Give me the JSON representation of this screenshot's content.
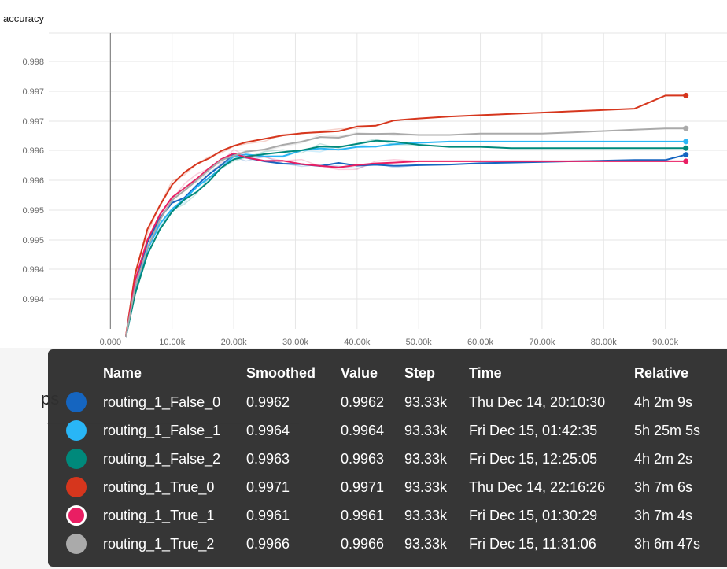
{
  "chart": {
    "title": "accuracy"
  },
  "chart_data": {
    "type": "line",
    "title": "accuracy",
    "xlabel": "",
    "ylabel": "",
    "x_ticks": [
      "0.000",
      "10.00k",
      "20.00k",
      "30.00k",
      "40.00k",
      "50.00k",
      "60.00k",
      "70.00k",
      "80.00k",
      "90.00k"
    ],
    "y_ticks": [
      "0.998",
      "0.997",
      "0.997",
      "0.996",
      "0.996",
      "0.995",
      "0.995",
      "0.994",
      "0.994"
    ],
    "xlim": [
      -10000,
      100000
    ],
    "ylim": [
      0.99355,
      0.99805
    ],
    "grid": true,
    "series": [
      {
        "name": "routing_1_False_0",
        "color": "#1565c0",
        "x": [
          2500,
          4000,
          6000,
          8000,
          10000,
          12000,
          14000,
          16000,
          18000,
          20000,
          22000,
          25000,
          28000,
          31000,
          34000,
          37000,
          40000,
          43000,
          46000,
          50000,
          55000,
          60000,
          65000,
          70000,
          75000,
          80000,
          85000,
          90000,
          93330
        ],
        "y": [
          0.99335,
          0.9942,
          0.99485,
          0.99525,
          0.99545,
          0.99555,
          0.99575,
          0.9959,
          0.99605,
          0.9962,
          0.99615,
          0.99612,
          0.99608,
          0.99606,
          0.99605,
          0.99605,
          0.99604,
          0.99604,
          0.99603,
          0.99604,
          0.99605,
          0.99607,
          0.99608,
          0.99609,
          0.9961,
          0.99611,
          0.99612,
          0.99612,
          0.9962
        ]
      },
      {
        "name": "routing_1_False_1",
        "color": "#29b6f6",
        "x": [
          2500,
          4000,
          6000,
          8000,
          10000,
          12000,
          14000,
          16000,
          18000,
          20000,
          22000,
          25000,
          28000,
          31000,
          34000,
          37000,
          40000,
          43000,
          46000,
          50000,
          55000,
          60000,
          65000,
          70000,
          75000,
          80000,
          85000,
          90000,
          93330
        ],
        "y": [
          0.9933,
          0.9941,
          0.99475,
          0.99515,
          0.9954,
          0.99552,
          0.9957,
          0.99585,
          0.996,
          0.99618,
          0.99618,
          0.99618,
          0.9962,
          0.99625,
          0.99628,
          0.9963,
          0.99632,
          0.99634,
          0.99636,
          0.99638,
          0.9964,
          0.9964,
          0.9964,
          0.9964,
          0.9964,
          0.9964,
          0.9964,
          0.9964,
          0.9964
        ]
      },
      {
        "name": "routing_1_False_2",
        "color": "#00897b",
        "x": [
          2500,
          4000,
          6000,
          8000,
          10000,
          12000,
          14000,
          16000,
          18000,
          20000,
          22000,
          25000,
          28000,
          31000,
          34000,
          37000,
          40000,
          43000,
          46000,
          50000,
          55000,
          60000,
          65000,
          70000,
          75000,
          80000,
          85000,
          90000,
          93330
        ],
        "y": [
          0.9933,
          0.9941,
          0.9947,
          0.99505,
          0.99535,
          0.9955,
          0.99565,
          0.9958,
          0.996,
          0.99615,
          0.99618,
          0.9962,
          0.99622,
          0.99628,
          0.99632,
          0.99634,
          0.99636,
          0.9964,
          0.9964,
          0.99635,
          0.99632,
          0.99632,
          0.9963,
          0.9963,
          0.9963,
          0.9963,
          0.9963,
          0.9963,
          0.9963
        ]
      },
      {
        "name": "routing_1_True_0",
        "color": "#d6361d",
        "x": [
          2500,
          4000,
          6000,
          8000,
          10000,
          12000,
          14000,
          16000,
          18000,
          20000,
          22000,
          25000,
          28000,
          31000,
          34000,
          37000,
          40000,
          43000,
          46000,
          50000,
          55000,
          60000,
          65000,
          70000,
          75000,
          80000,
          85000,
          90000,
          93330
        ],
        "y": [
          0.99345,
          0.9944,
          0.99505,
          0.99545,
          0.99575,
          0.99595,
          0.99605,
          0.99615,
          0.99625,
          0.99632,
          0.99638,
          0.99642,
          0.99648,
          0.99652,
          0.99655,
          0.99658,
          0.99662,
          0.99665,
          0.99672,
          0.99675,
          0.99678,
          0.9968,
          0.99682,
          0.99684,
          0.99686,
          0.99688,
          0.9969,
          0.9971,
          0.9971
        ]
      },
      {
        "name": "routing_1_True_1",
        "color": "#e91e63",
        "x": [
          2500,
          4000,
          6000,
          8000,
          10000,
          12000,
          14000,
          16000,
          18000,
          20000,
          22000,
          25000,
          28000,
          31000,
          34000,
          37000,
          40000,
          43000,
          46000,
          50000,
          55000,
          60000,
          65000,
          70000,
          75000,
          80000,
          85000,
          90000,
          93330
        ],
        "y": [
          0.9934,
          0.9943,
          0.9949,
          0.9953,
          0.99555,
          0.9957,
          0.99585,
          0.996,
          0.99612,
          0.99622,
          0.99618,
          0.99612,
          0.9961,
          0.99608,
          0.99605,
          0.99603,
          0.99603,
          0.99605,
          0.99608,
          0.9961,
          0.9961,
          0.9961,
          0.9961,
          0.9961,
          0.9961,
          0.9961,
          0.9961,
          0.9961,
          0.9961
        ]
      },
      {
        "name": "routing_1_True_2",
        "color": "#aaaaaa",
        "x": [
          2500,
          4000,
          6000,
          8000,
          10000,
          12000,
          14000,
          16000,
          18000,
          20000,
          22000,
          25000,
          28000,
          31000,
          34000,
          37000,
          40000,
          43000,
          46000,
          50000,
          55000,
          60000,
          65000,
          70000,
          75000,
          80000,
          85000,
          90000,
          93330
        ],
        "y": [
          0.99335,
          0.9942,
          0.9948,
          0.9952,
          0.9955,
          0.99565,
          0.9958,
          0.99598,
          0.9961,
          0.9962,
          0.99625,
          0.99628,
          0.99635,
          0.9964,
          0.99645,
          0.99648,
          0.9965,
          0.99652,
          0.99652,
          0.9965,
          0.9965,
          0.99652,
          0.99652,
          0.99652,
          0.99654,
          0.99656,
          0.99658,
          0.9966,
          0.9966
        ]
      }
    ]
  },
  "below": {
    "partial_text": "ps"
  },
  "tooltip": {
    "headers": {
      "name": "Name",
      "smoothed": "Smoothed",
      "value": "Value",
      "step": "Step",
      "time": "Time",
      "relative": "Relative"
    },
    "rows": [
      {
        "name": "routing_1_False_0",
        "smoothed": "0.9962",
        "value": "0.9962",
        "step": "93.33k",
        "time": "Thu Dec 14, 20:10:30",
        "relative": "4h 2m 9s",
        "color": "#1565c0",
        "ring": false
      },
      {
        "name": "routing_1_False_1",
        "smoothed": "0.9964",
        "value": "0.9964",
        "step": "93.33k",
        "time": "Fri Dec 15, 01:42:35",
        "relative": "5h 25m 5s",
        "color": "#29b6f6",
        "ring": false
      },
      {
        "name": "routing_1_False_2",
        "smoothed": "0.9963",
        "value": "0.9963",
        "step": "93.33k",
        "time": "Fri Dec 15, 12:25:05",
        "relative": "4h 2m 2s",
        "color": "#00897b",
        "ring": false
      },
      {
        "name": "routing_1_True_0",
        "smoothed": "0.9971",
        "value": "0.9971",
        "step": "93.33k",
        "time": "Thu Dec 14, 22:16:26",
        "relative": "3h 7m 6s",
        "color": "#d6361d",
        "ring": false
      },
      {
        "name": "routing_1_True_1",
        "smoothed": "0.9961",
        "value": "0.9961",
        "step": "93.33k",
        "time": "Fri Dec 15, 01:30:29",
        "relative": "3h 7m 4s",
        "color": "#e91e63",
        "ring": true
      },
      {
        "name": "routing_1_True_2",
        "smoothed": "0.9966",
        "value": "0.9966",
        "step": "93.33k",
        "time": "Fri Dec 15, 11:31:06",
        "relative": "3h 6m 47s",
        "color": "#aaaaaa",
        "ring": false
      }
    ]
  }
}
